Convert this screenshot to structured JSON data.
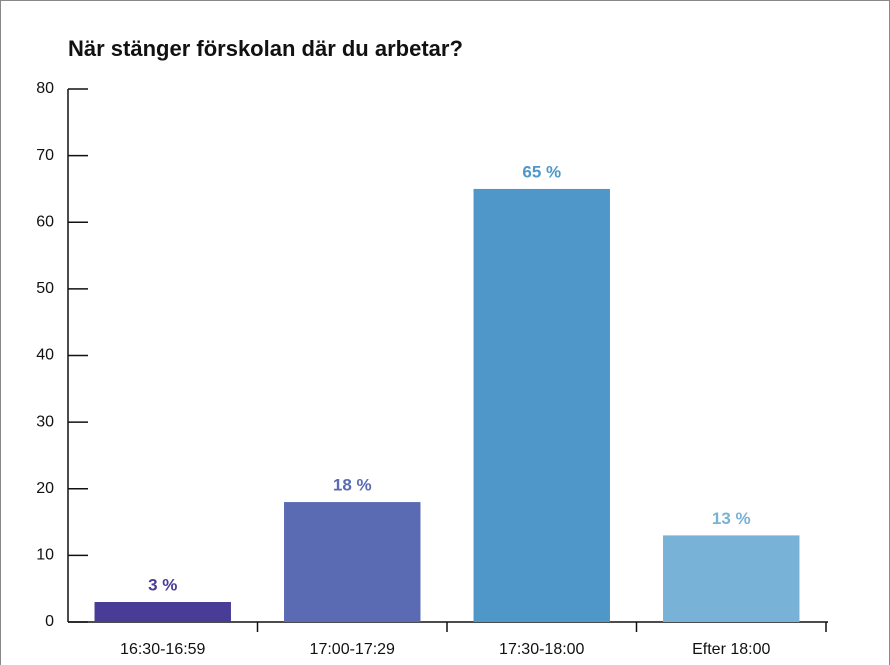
{
  "chart_data": {
    "type": "bar",
    "title": "När stänger förskolan där du arbetar?",
    "categories": [
      "16:30-16:59",
      "17:00-17:29",
      "17:30-18:00",
      "Efter 18:00"
    ],
    "values": [
      3,
      18,
      65,
      13
    ],
    "value_labels": [
      "3 %",
      "18 %",
      "65 %",
      "13 %"
    ],
    "colors": [
      "#483d96",
      "#5a6ab3",
      "#4f97c9",
      "#79b2d7"
    ],
    "ylim": [
      0,
      80
    ],
    "yticks": [
      0,
      10,
      20,
      30,
      40,
      50,
      60,
      70,
      80
    ],
    "grid": false
  }
}
